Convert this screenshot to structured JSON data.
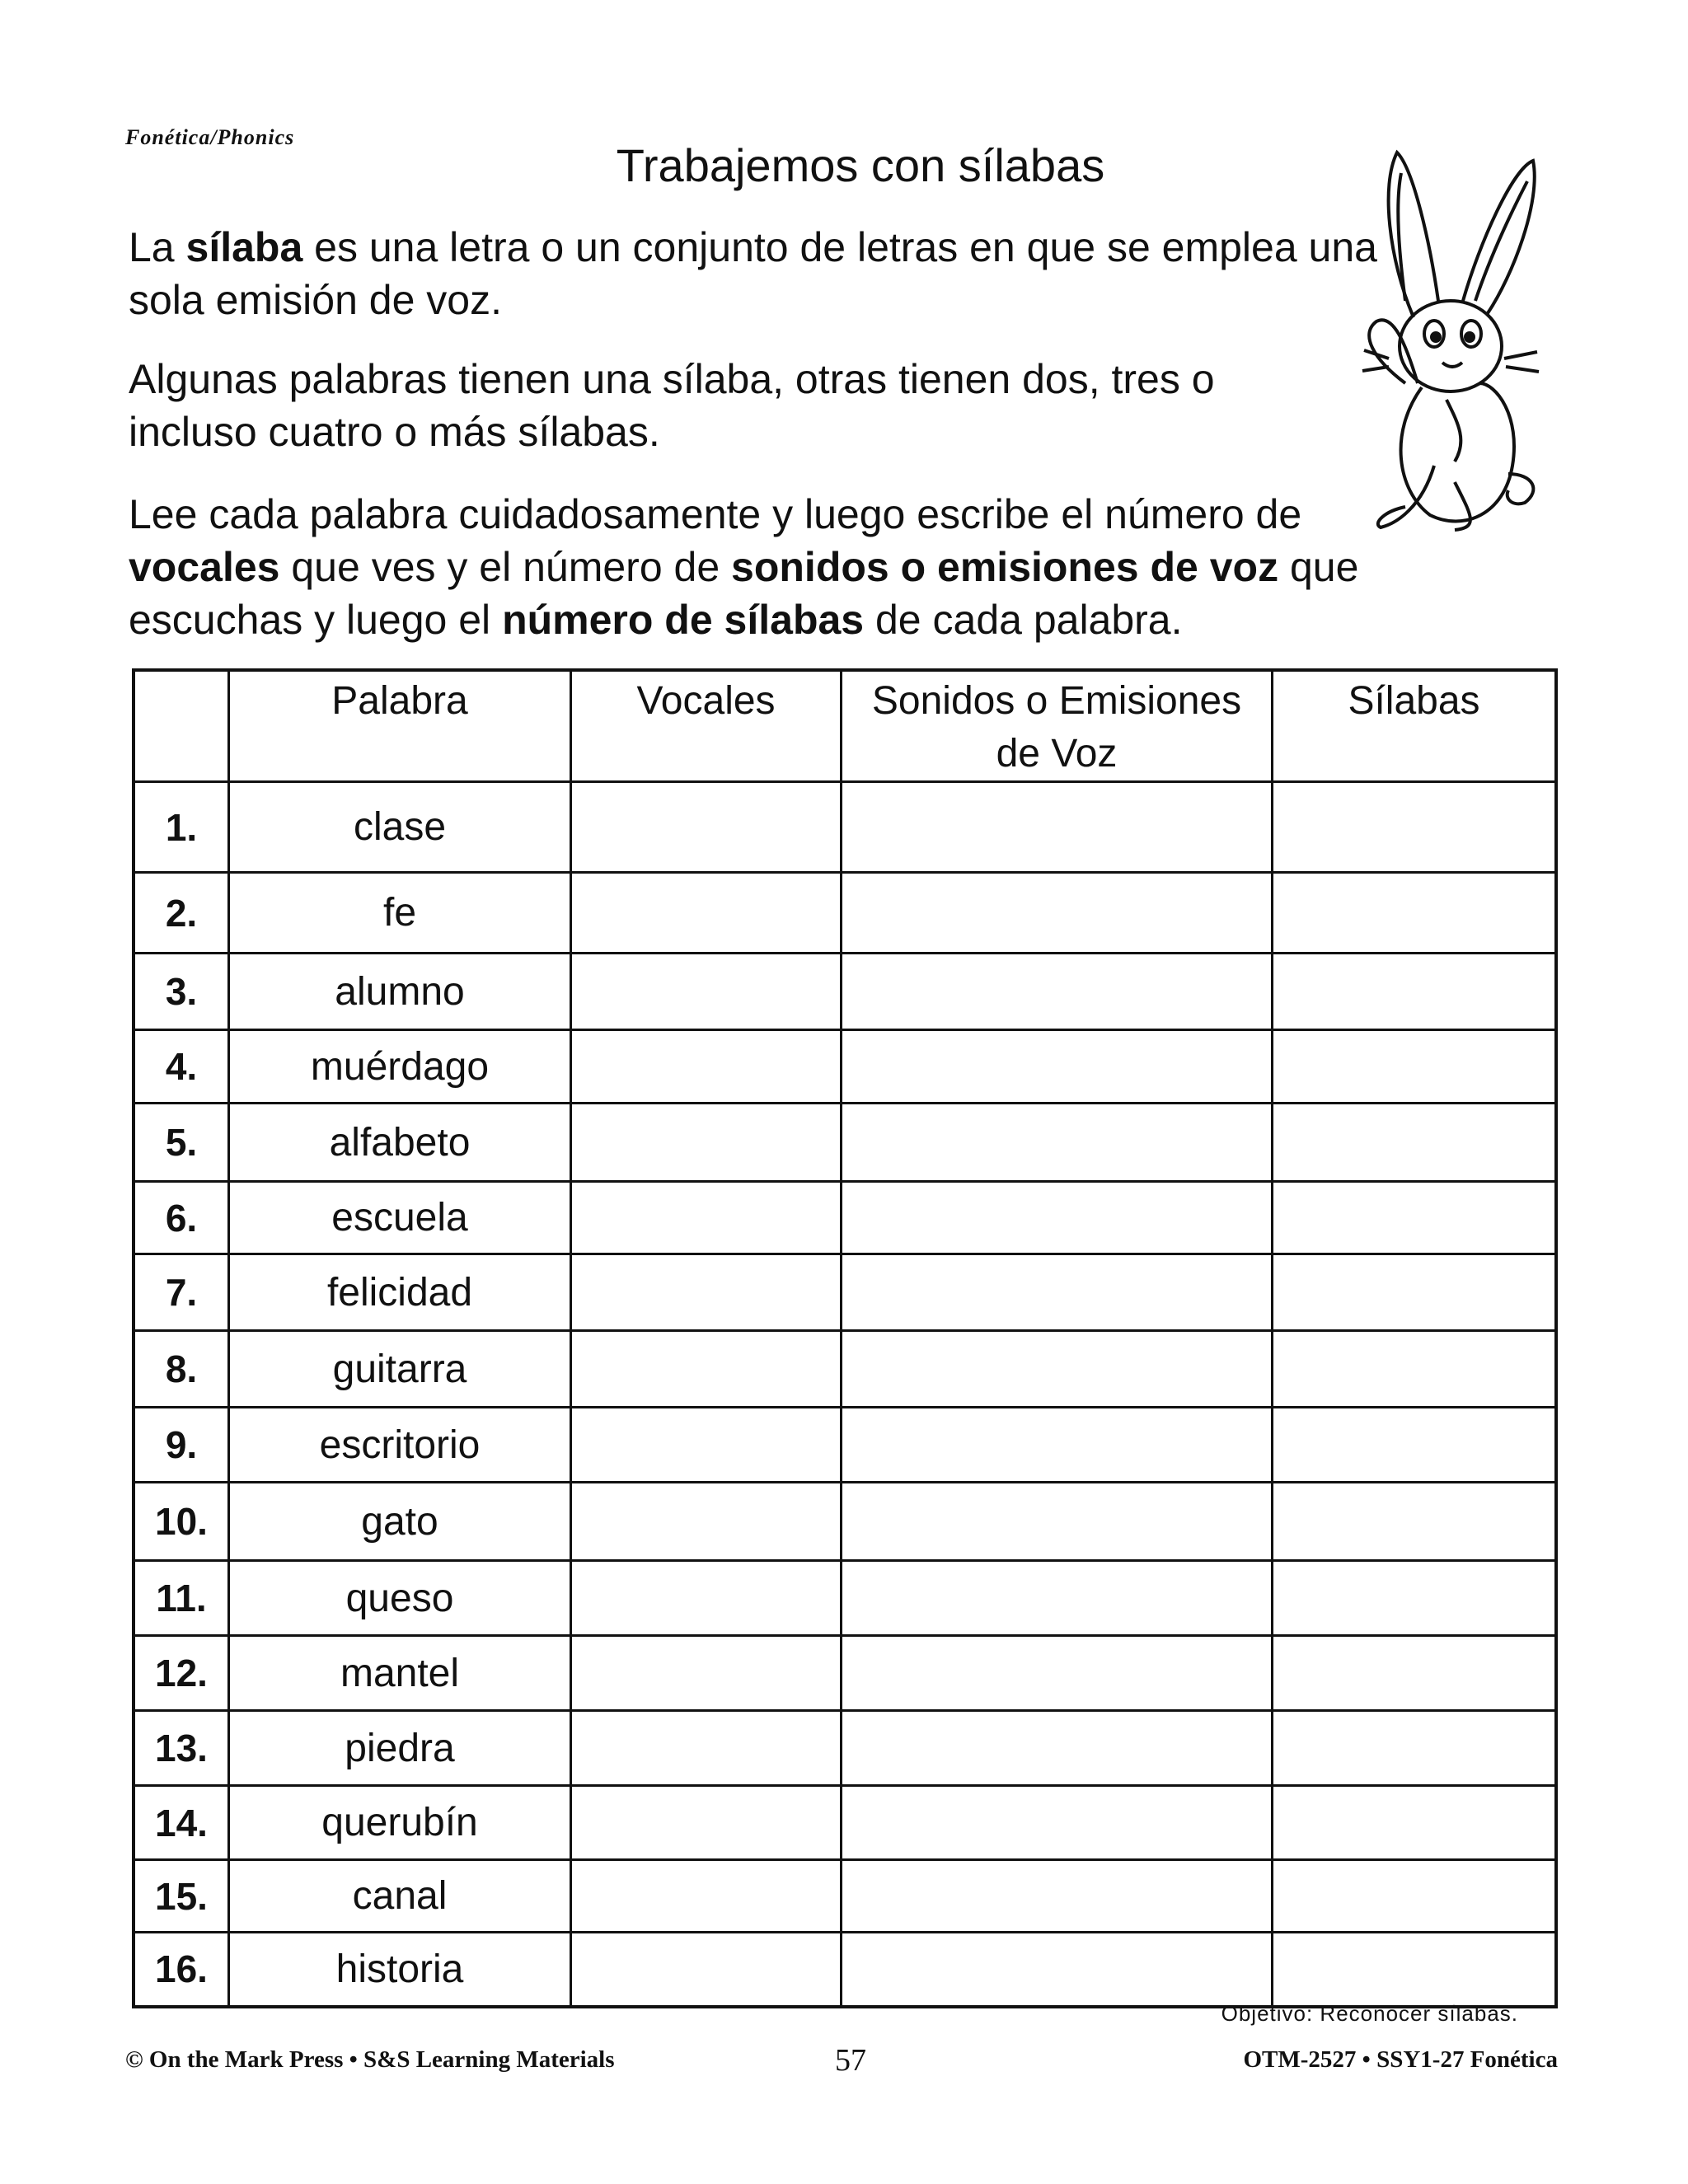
{
  "section_label": "Fonética/Phonics",
  "title": "Trabajemos con sílabas",
  "intro": {
    "p1": {
      "pre": "La ",
      "bold": "sílaba",
      "post": " es una letra o un conjunto de letras en que se emplea una sola emisión de voz."
    },
    "p2": "Algunas palabras tienen una sílaba, otras tienen dos, tres o incluso cuatro o más sílabas.",
    "p3": {
      "a": "Lee cada palabra cuidadosamente y luego escribe el número de ",
      "b1": "vocales",
      "c": " que ves y el número de ",
      "b2": "sonidos o emisiones de voz",
      "d": " que escuchas y luego el ",
      "b3": "número de sílabas",
      "e": " de cada palabra."
    }
  },
  "table": {
    "headers": [
      "",
      "Palabra",
      "Vocales",
      "Sonidos o Emisiones de Voz",
      "Sílabas"
    ],
    "rows": [
      {
        "num": "1.",
        "word": "clase"
      },
      {
        "num": "2.",
        "word": "fe"
      },
      {
        "num": "3.",
        "word": "alumno"
      },
      {
        "num": "4.",
        "word": "muérdago"
      },
      {
        "num": "5.",
        "word": "alfabeto"
      },
      {
        "num": "6.",
        "word": "escuela"
      },
      {
        "num": "7.",
        "word": "felicidad"
      },
      {
        "num": "8.",
        "word": "guitarra"
      },
      {
        "num": "9.",
        "word": "escritorio"
      },
      {
        "num": "10.",
        "word": "gato"
      },
      {
        "num": "11.",
        "word": "queso"
      },
      {
        "num": "12.",
        "word": "mantel"
      },
      {
        "num": "13.",
        "word": "piedra"
      },
      {
        "num": "14.",
        "word": "querubín"
      },
      {
        "num": "15.",
        "word": "canal"
      },
      {
        "num": "16.",
        "word": "historia"
      }
    ]
  },
  "objective": "Objetivo: Reconocer sílabas.",
  "footer": {
    "left": "© On the Mark Press • S&S Learning Materials",
    "page": "57",
    "right": "OTM-2527 • SSY1-27 Fonética"
  },
  "illustration": "rabbit"
}
